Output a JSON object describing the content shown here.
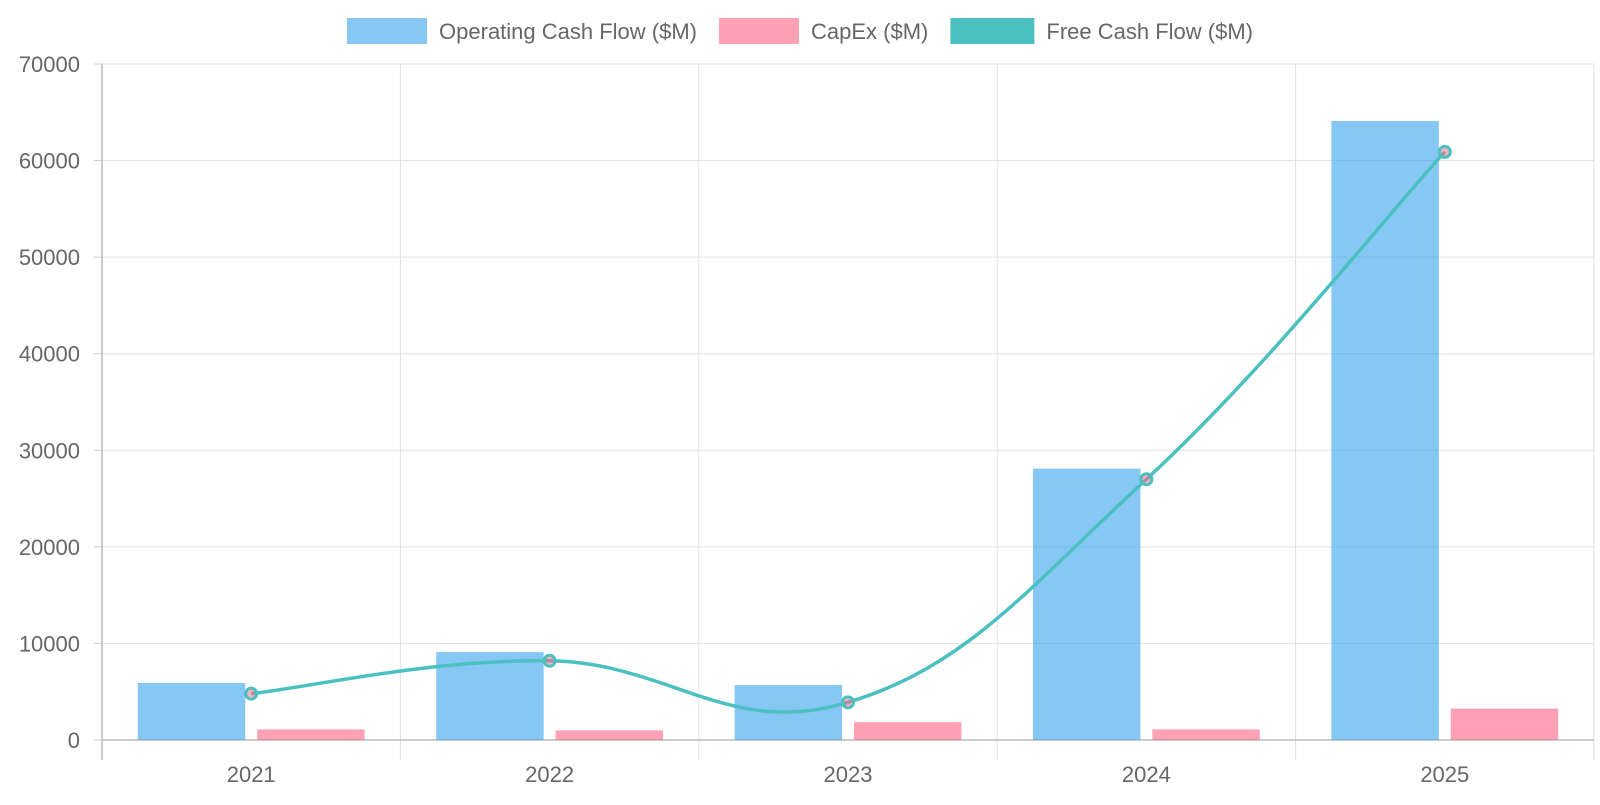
{
  "chart_data": {
    "type": "bar",
    "categories": [
      "2021",
      "2022",
      "2023",
      "2024",
      "2025"
    ],
    "series": [
      {
        "name": "Operating Cash Flow ($M)",
        "type": "bar",
        "values": [
          5900,
          9100,
          5700,
          28100,
          64100
        ],
        "color": "#36a2eb"
      },
      {
        "name": "CapEx ($M)",
        "type": "bar",
        "values": [
          1100,
          1000,
          1850,
          1100,
          3250
        ],
        "color": "#ff6384"
      },
      {
        "name": "Free Cash Flow ($M)",
        "type": "line",
        "values": [
          4800,
          8200,
          3900,
          27000,
          60900
        ],
        "color": "#4bc0c0"
      }
    ],
    "ylim": [
      0,
      70000
    ],
    "yticks": [
      "0",
      "10000",
      "20000",
      "30000",
      "40000",
      "50000",
      "60000",
      "70000"
    ],
    "grid": true,
    "legend_position": "top"
  }
}
